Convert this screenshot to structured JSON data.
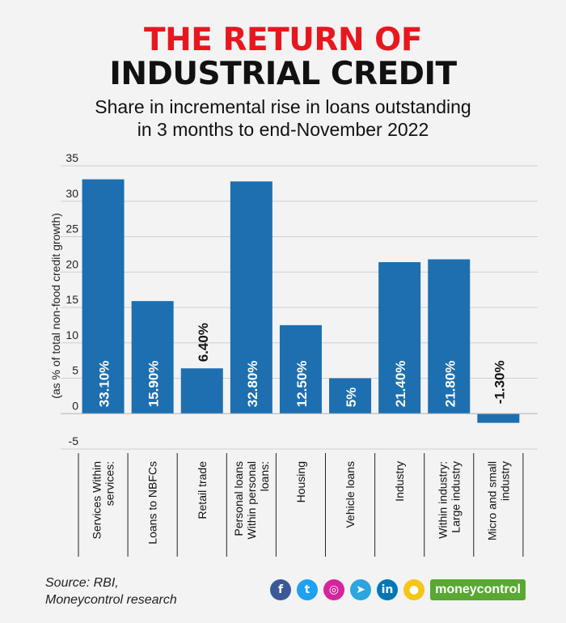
{
  "header": {
    "title_line1": "THE RETURN OF",
    "title_line2": "INDUSTRIAL CREDIT",
    "subtitle_line1": "Share in incremental rise in loans outstanding",
    "subtitle_line2": "in 3 months to end-November 2022"
  },
  "colors": {
    "title_red": "#e8171e",
    "title_black": "#111111",
    "bar": "#1d6fb0",
    "label_on_bar": "#ffffff",
    "label_off_bar": "#111111"
  },
  "chart_data": {
    "type": "bar",
    "ylabel": "(as % of total non-food credit growth)",
    "ylim": [
      -5,
      35
    ],
    "yticks": [
      -5,
      0,
      5,
      10,
      15,
      20,
      25,
      30,
      35
    ],
    "grid": true,
    "categories": [
      [
        "Services Within",
        "services:"
      ],
      [
        "Loans to NBFCs"
      ],
      [
        "Retail trade"
      ],
      [
        "Personal loans",
        "Within personal",
        "loans:"
      ],
      [
        "Housing"
      ],
      [
        "Vehicle loans"
      ],
      [
        "Industry"
      ],
      [
        "Within industry:",
        "Large industry"
      ],
      [
        "Micro and small",
        "industry"
      ]
    ],
    "values": [
      33.1,
      15.9,
      6.4,
      32.8,
      12.5,
      5,
      21.4,
      21.8,
      -1.3
    ],
    "data_labels": [
      "33.10%",
      "15.90%",
      "6.40%",
      "32.80%",
      "12.50%",
      "5%",
      "21.40%",
      "21.80%",
      "-1.30%"
    ],
    "label_inside": [
      true,
      true,
      false,
      true,
      true,
      true,
      true,
      true,
      false
    ]
  },
  "footer": {
    "source_line1": "Source: RBI,",
    "source_line2": "Moneycontrol research",
    "brand": "moneycontrol",
    "social_icons": [
      {
        "name": "facebook-icon",
        "glyph": "f",
        "color": "#3b5998"
      },
      {
        "name": "twitter-icon",
        "glyph": "t",
        "color": "#1da1f2"
      },
      {
        "name": "instagram-icon",
        "glyph": "◎",
        "color": "#d6249f"
      },
      {
        "name": "telegram-icon",
        "glyph": "➤",
        "color": "#2ca5e0"
      },
      {
        "name": "linkedin-icon",
        "glyph": "in",
        "color": "#0077b5"
      },
      {
        "name": "koo-icon",
        "glyph": "●",
        "color": "#f5c518"
      }
    ]
  }
}
